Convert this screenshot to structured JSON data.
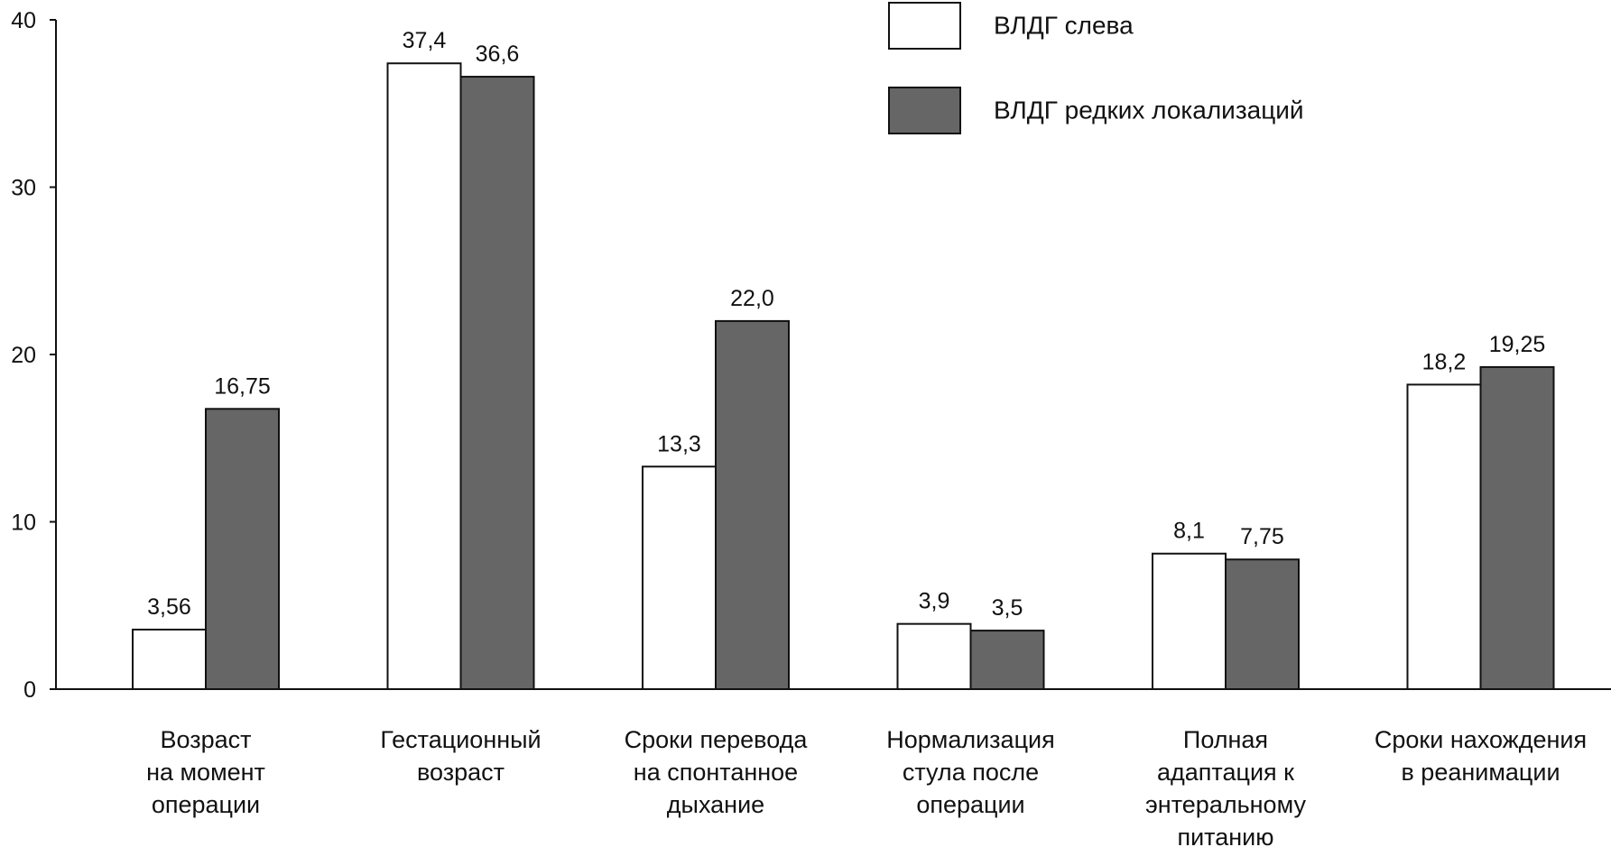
{
  "chart_data": {
    "type": "bar",
    "title": "",
    "xlabel": "",
    "ylabel": "",
    "ylim": [
      0,
      40
    ],
    "yticks": [
      0,
      10,
      20,
      30,
      40
    ],
    "grid": false,
    "legend_position": "top-right",
    "categories": [
      [
        "Возраст",
        "на момент",
        "операции"
      ],
      [
        "Гестационный",
        "возраст"
      ],
      [
        "Сроки перевода",
        "на спонтанное",
        "дыхание"
      ],
      [
        "Нормализация",
        "стула после",
        "операции"
      ],
      [
        "Полная",
        "адаптация к",
        "энтеральному",
        "питанию"
      ],
      [
        "Сроки нахождения",
        "в реанимации"
      ]
    ],
    "series": [
      {
        "name": "ВЛДГ слева",
        "color": "#ffffff",
        "values": [
          3.56,
          37.4,
          13.3,
          3.9,
          8.1,
          18.2
        ],
        "labels": [
          "3,56",
          "37,4",
          "13,3",
          "3,9",
          "8,1",
          "18,2"
        ]
      },
      {
        "name": "ВЛДГ редких локализаций",
        "color": "#666666",
        "values": [
          16.75,
          36.6,
          22.0,
          3.5,
          7.75,
          19.25
        ],
        "labels": [
          "16,75",
          "36,6",
          "22,0",
          "3,5",
          "7,75",
          "19,25"
        ]
      }
    ]
  }
}
